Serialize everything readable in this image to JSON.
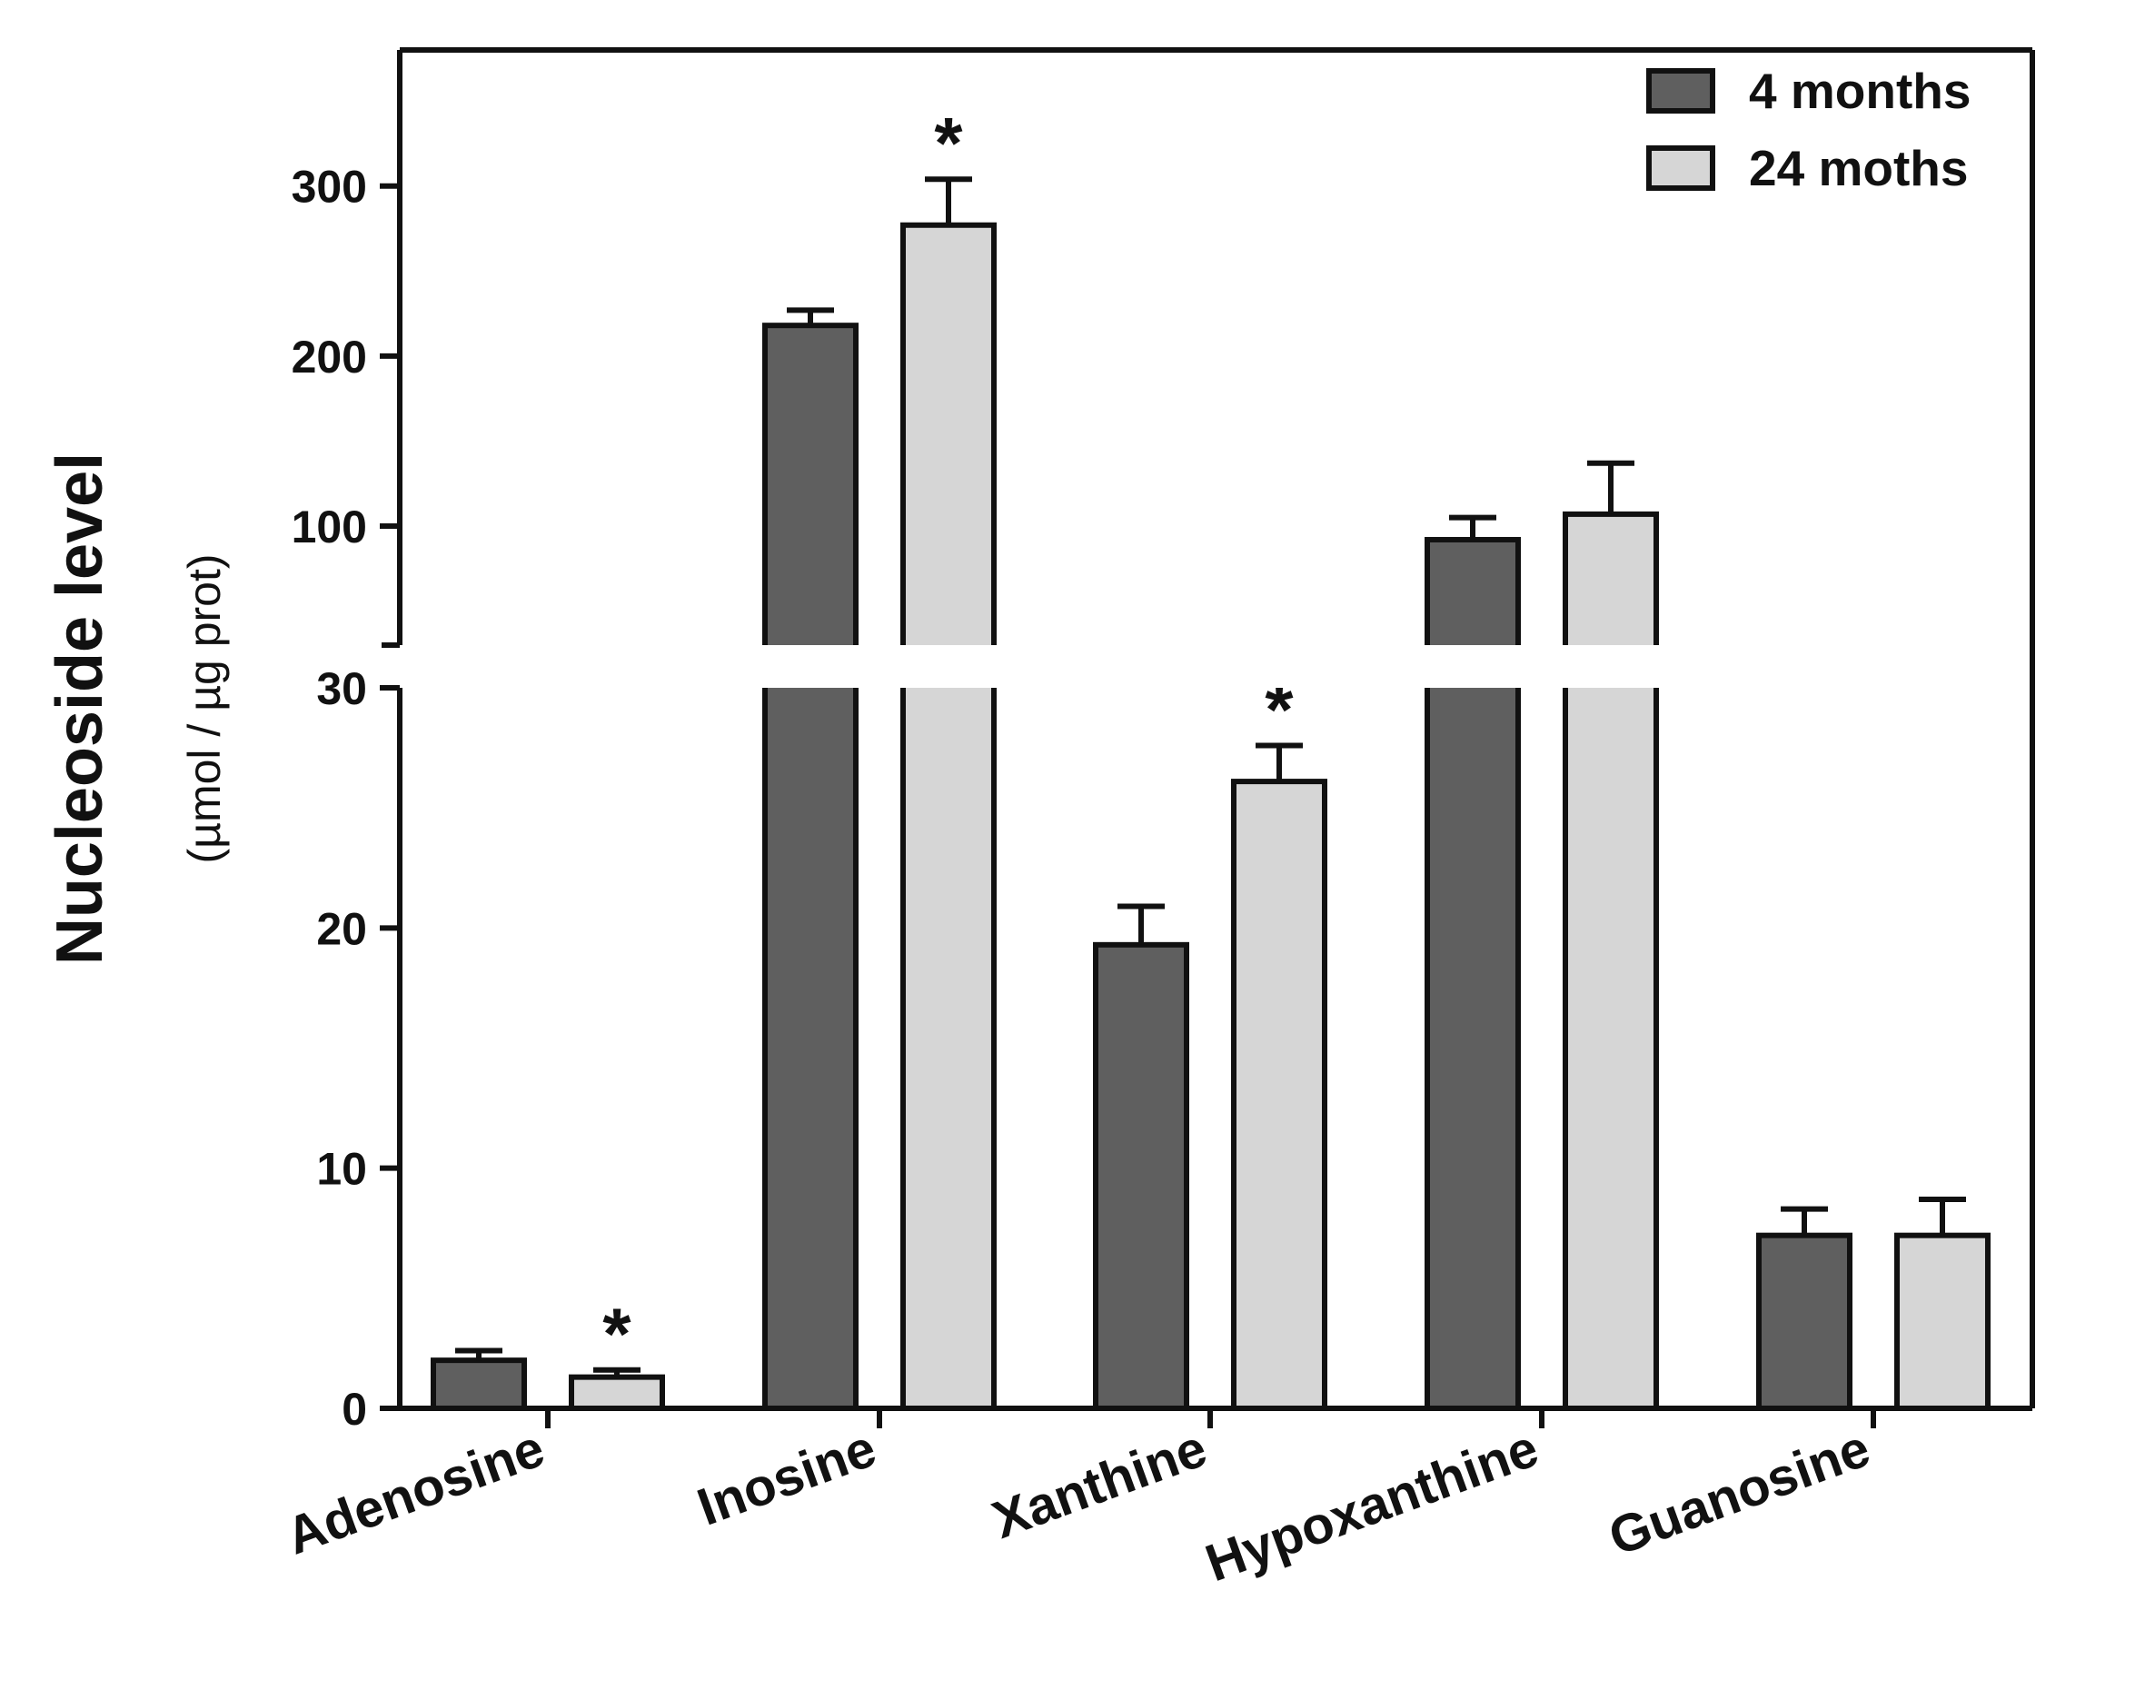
{
  "chart_data": {
    "type": "bar",
    "title": "",
    "xlabel": "",
    "ylabel": "Nucleoside level",
    "ylabel_units": "(µmol / µg  prot)",
    "categories": [
      "Adenosine",
      "Inosine",
      "Xanthine",
      "Hypoxanthine",
      "Guanosine"
    ],
    "series": [
      {
        "name": "4 months",
        "color": "#5f5f5f",
        "values": [
          2.0,
          218,
          19.3,
          92,
          7.2
        ],
        "errors": [
          0.4,
          9,
          1.6,
          13,
          1.1
        ]
      },
      {
        "name": "24 moths",
        "color": "#d6d6d6",
        "values": [
          1.3,
          277,
          26.1,
          107,
          7.2
        ],
        "errors": [
          0.3,
          27,
          1.5,
          30,
          1.5
        ]
      }
    ],
    "significance": [
      {
        "category": "Adenosine",
        "series": "24 moths",
        "marker": "*"
      },
      {
        "category": "Inosine",
        "series": "24 moths",
        "marker": "*"
      },
      {
        "category": "Xanthine",
        "series": "24 moths",
        "marker": "*"
      }
    ],
    "axis_break": true,
    "lower_segment": {
      "ylim": [
        0,
        30
      ],
      "ticks": [
        "0",
        "10",
        "20",
        "30"
      ]
    },
    "upper_segment": {
      "ylim": [
        30,
        380
      ],
      "ticks": [
        "100",
        "200",
        "300"
      ]
    },
    "legend": {
      "position": "top-right",
      "entries": [
        "4 months",
        "24 moths"
      ]
    },
    "grid": false
  }
}
